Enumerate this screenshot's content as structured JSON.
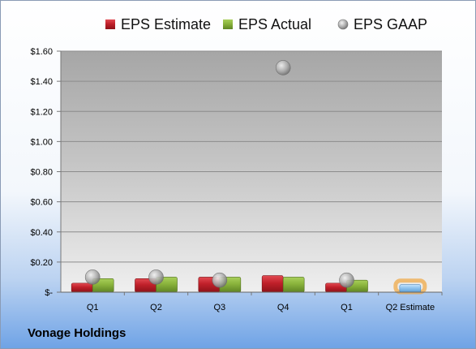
{
  "chart_data": {
    "type": "bar",
    "categories": [
      "Q1",
      "Q2",
      "Q3",
      "Q4",
      "Q1",
      "Q2 Estimate"
    ],
    "series": [
      {
        "name": "EPS Estimate",
        "values": [
          0.06,
          0.09,
          0.1,
          0.11,
          0.06,
          null
        ],
        "color": "#c0202a"
      },
      {
        "name": "EPS Actual",
        "values": [
          0.09,
          0.1,
          0.1,
          0.1,
          0.08,
          null
        ],
        "color": "#8ab33c"
      },
      {
        "name": "EPS GAAP",
        "values": [
          0.1,
          0.1,
          0.08,
          1.49,
          0.08,
          null
        ],
        "color": "#b0b0b0"
      }
    ],
    "estimate_bar": {
      "category": "Q2 Estimate",
      "value": 0.05,
      "color": "#8fc3ee",
      "highlight": "#f0a030"
    },
    "yticks": [
      "$-",
      "$0.20",
      "$0.40",
      "$0.60",
      "$0.80",
      "$1.00",
      "$1.20",
      "$1.40",
      "$1.60"
    ],
    "ylim": [
      0,
      1.6
    ],
    "grid": true,
    "legend_position": "top"
  },
  "footer": {
    "title": "Vonage Holdings"
  }
}
